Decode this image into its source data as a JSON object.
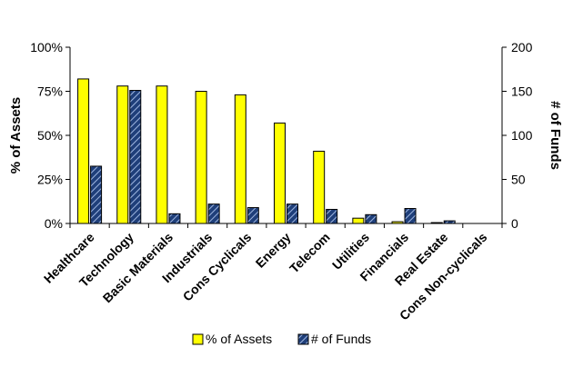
{
  "chart_data": {
    "type": "bar",
    "categories": [
      "Healthcare",
      "Technology",
      "Basic Materials",
      "Industrials",
      "Cons Cyclicals",
      "Energy",
      "Telecom",
      "Utilities",
      "Financials",
      "Real Estate",
      "Cons Non-cyclicals"
    ],
    "series": [
      {
        "name": "% of Assets",
        "axis": "left",
        "color": "#ffff00",
        "pattern": "solid",
        "values": [
          82,
          78,
          78,
          75,
          73,
          57,
          41,
          3,
          1,
          0.5,
          0
        ]
      },
      {
        "name": "# of Funds",
        "axis": "right",
        "color": "#1f3f7a",
        "pattern": "hatched",
        "values": [
          65,
          151,
          11,
          22,
          18,
          22,
          16,
          10,
          17,
          3,
          0
        ]
      }
    ],
    "ylabel": "% of Assets",
    "y2label": "# of Funds",
    "ylim": [
      0,
      100
    ],
    "y2lim": [
      0,
      200
    ],
    "yticks": [
      "0%",
      "25%",
      "50%",
      "75%",
      "100%"
    ],
    "y2ticks": [
      "0",
      "50",
      "100",
      "150",
      "200"
    ],
    "grid": false,
    "legend_position": "bottom"
  }
}
